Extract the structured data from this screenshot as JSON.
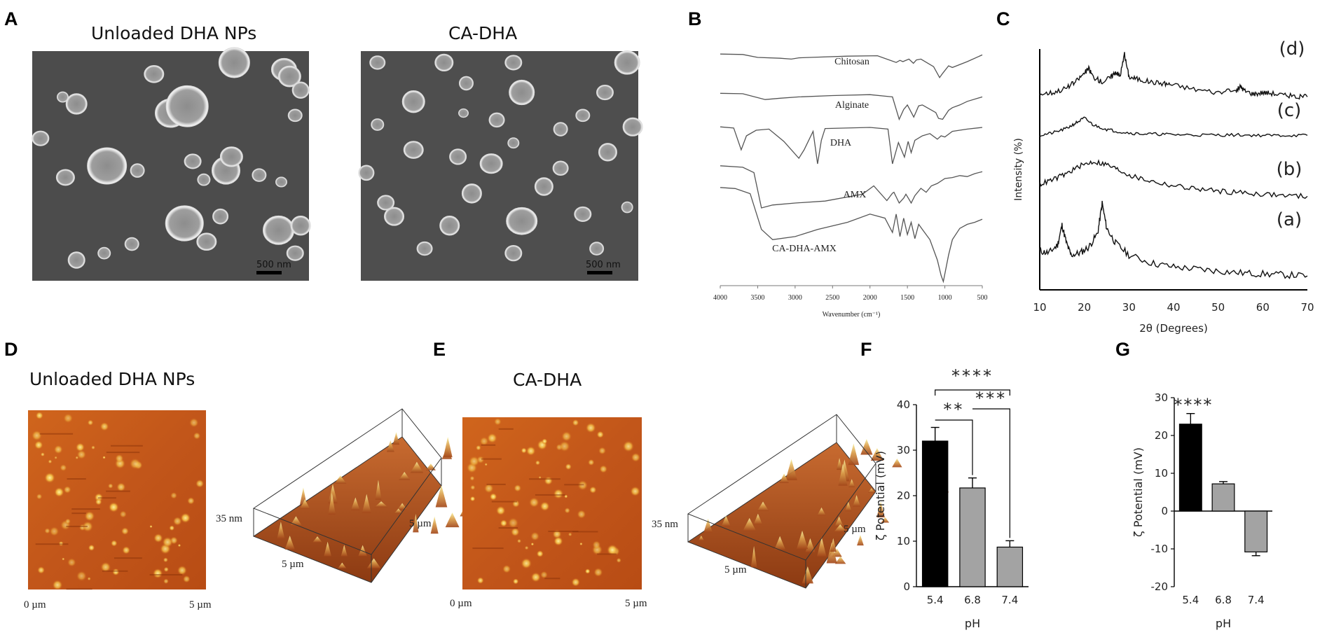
{
  "panel_labels": [
    "A",
    "B",
    "C",
    "D",
    "E",
    "F",
    "G"
  ],
  "panel_a": {
    "left_title": "Unloaded DHA NPs",
    "right_title": "CA-DHA",
    "scale_bar_left": "500 nm",
    "scale_bar_right": "500 nm"
  },
  "panel_d": {
    "title": "Unloaded DHA NPs",
    "x_start": "0 µm",
    "x_end": "5 µm",
    "height_label": "35 nm",
    "side_label_right": "5 µm",
    "side_label_bottom": "5 µm"
  },
  "panel_e": {
    "title": "CA-DHA",
    "x_start": "0 µm",
    "x_end": "5 µm",
    "height_label": "35 nm",
    "side_label_right": "5 µm",
    "side_label_bottom": "5 µm"
  },
  "colors": {
    "black_bar": "#000000",
    "grey_bar": "#a3a3a3",
    "sem_background": "#4c4c4c",
    "afm_base": "#c65a16"
  },
  "chart_data": [
    {
      "id": "B",
      "type": "line",
      "xlabel": "Wavenumber (cm⁻¹)",
      "x_ticks": [
        4000,
        3500,
        3000,
        2500,
        2000,
        1500,
        1000,
        500
      ],
      "xlim": [
        4000,
        500
      ],
      "series": [
        {
          "name": "Chitosan",
          "x": [
            4000,
            3700,
            3500,
            3200,
            3050,
            2950,
            2800,
            2300,
            1900,
            1650,
            1600,
            1560,
            1480,
            1420,
            1380,
            1320,
            1150,
            1070,
            1030,
            950,
            900,
            700,
            500
          ],
          "y": [
            0.98,
            0.97,
            0.9,
            0.88,
            0.86,
            0.89,
            0.9,
            0.93,
            0.94,
            0.78,
            0.83,
            0.8,
            0.86,
            0.76,
            0.84,
            0.86,
            0.68,
            0.42,
            0.52,
            0.7,
            0.66,
            0.8,
            0.96
          ]
        },
        {
          "name": "Alginate",
          "x": [
            4000,
            3700,
            3400,
            3200,
            2950,
            2500,
            2000,
            1700,
            1610,
            1550,
            1500,
            1415,
            1350,
            1300,
            1120,
            1085,
            1030,
            950,
            900,
            800,
            700,
            500
          ],
          "y": [
            0.98,
            0.97,
            0.84,
            0.87,
            0.9,
            0.93,
            0.95,
            0.9,
            0.4,
            0.62,
            0.72,
            0.45,
            0.7,
            0.72,
            0.55,
            0.42,
            0.4,
            0.6,
            0.66,
            0.72,
            0.8,
            0.9
          ]
        },
        {
          "name": "DHA",
          "x": [
            4000,
            3820,
            3720,
            3650,
            3520,
            3350,
            3150,
            2950,
            2880,
            2760,
            2700,
            2650,
            2600,
            2000,
            1760,
            1700,
            1620,
            1540,
            1490,
            1450,
            1400,
            1300,
            1200,
            1100,
            1050,
            1000,
            900,
            800,
            700,
            500
          ],
          "y": [
            0.96,
            0.94,
            0.55,
            0.8,
            0.9,
            0.92,
            0.7,
            0.4,
            0.55,
            0.88,
            0.3,
            0.72,
            0.93,
            0.95,
            0.92,
            0.3,
            0.68,
            0.42,
            0.7,
            0.5,
            0.72,
            0.8,
            0.84,
            0.74,
            0.8,
            0.78,
            0.88,
            0.9,
            0.92,
            0.95
          ]
        },
        {
          "name": "AMX",
          "x": [
            4000,
            3700,
            3550,
            3450,
            3300,
            3000,
            2600,
            2100,
            1950,
            1775,
            1700,
            1680,
            1610,
            1550,
            1520,
            1480,
            1450,
            1400,
            1320,
            1250,
            1180,
            1100,
            1000,
            900,
            800,
            700,
            600,
            500
          ],
          "y": [
            0.96,
            0.93,
            0.82,
            0.1,
            0.16,
            0.2,
            0.24,
            0.38,
            0.55,
            0.25,
            0.4,
            0.42,
            0.2,
            0.3,
            0.38,
            0.28,
            0.2,
            0.35,
            0.5,
            0.42,
            0.55,
            0.6,
            0.7,
            0.72,
            0.76,
            0.74,
            0.8,
            0.84
          ]
        },
        {
          "name": "CA-DHA-AMX",
          "x": [
            4000,
            3800,
            3600,
            3450,
            3300,
            3000,
            2700,
            2300,
            2000,
            1800,
            1700,
            1650,
            1600,
            1550,
            1500,
            1450,
            1400,
            1350,
            1300,
            1200,
            1100,
            1050,
            1020,
            950,
            900,
            800,
            700,
            600,
            500
          ],
          "y": [
            0.96,
            0.95,
            0.9,
            0.55,
            0.45,
            0.48,
            0.55,
            0.62,
            0.7,
            0.66,
            0.52,
            0.7,
            0.48,
            0.66,
            0.5,
            0.62,
            0.46,
            0.6,
            0.55,
            0.45,
            0.25,
            0.1,
            0.04,
            0.3,
            0.45,
            0.56,
            0.6,
            0.62,
            0.65
          ]
        }
      ]
    },
    {
      "id": "C",
      "type": "line",
      "xlabel": "2θ (Degrees)",
      "ylabel": "Intensity (%)",
      "xlim": [
        10,
        70
      ],
      "x_ticks": [
        10,
        20,
        30,
        40,
        50,
        60,
        70
      ],
      "series": [
        {
          "name": "(a)",
          "x": [
            10,
            12,
            14,
            15,
            16,
            17,
            19,
            21,
            23,
            24,
            25,
            27,
            30,
            35,
            40,
            45,
            50,
            55,
            60,
            65,
            70
          ],
          "y": [
            0.32,
            0.3,
            0.38,
            0.58,
            0.4,
            0.28,
            0.3,
            0.36,
            0.5,
            0.8,
            0.55,
            0.4,
            0.28,
            0.2,
            0.16,
            0.14,
            0.12,
            0.1,
            0.09,
            0.08,
            0.07
          ]
        },
        {
          "name": "(b)",
          "x": [
            10,
            13,
            16,
            19,
            22,
            25,
            28,
            31,
            35,
            40,
            45,
            50,
            55,
            60,
            65,
            70
          ],
          "y": [
            0.36,
            0.42,
            0.5,
            0.6,
            0.66,
            0.62,
            0.54,
            0.46,
            0.4,
            0.34,
            0.3,
            0.27,
            0.25,
            0.23,
            0.21,
            0.2
          ]
        },
        {
          "name": "(c)",
          "x": [
            10,
            13,
            16,
            18,
            20,
            22,
            25,
            28,
            32,
            36,
            40,
            45,
            50,
            55,
            60,
            65,
            70
          ],
          "y": [
            0.3,
            0.36,
            0.46,
            0.58,
            0.7,
            0.54,
            0.44,
            0.38,
            0.34,
            0.33,
            0.32,
            0.31,
            0.31,
            0.31,
            0.3,
            0.3,
            0.3
          ]
        },
        {
          "name": "(d)",
          "x": [
            10,
            13,
            16,
            18,
            20,
            21,
            22,
            24,
            26,
            27,
            28,
            29,
            30,
            32,
            35,
            38,
            40,
            45,
            50,
            54,
            55,
            56,
            58,
            60,
            62,
            65,
            68,
            70
          ],
          "y": [
            0.32,
            0.34,
            0.4,
            0.48,
            0.6,
            0.66,
            0.55,
            0.48,
            0.55,
            0.62,
            0.56,
            0.85,
            0.55,
            0.52,
            0.48,
            0.46,
            0.44,
            0.38,
            0.34,
            0.36,
            0.42,
            0.36,
            0.32,
            0.34,
            0.33,
            0.3,
            0.28,
            0.28
          ]
        }
      ]
    },
    {
      "id": "F",
      "type": "bar",
      "xlabel": "pH",
      "ylabel": "ζ Potential (mV)",
      "categories": [
        "5.4",
        "6.8",
        "7.4"
      ],
      "values": [
        32,
        21.7,
        8.7
      ],
      "errors": [
        3.0,
        2.2,
        1.4
      ],
      "ylim": [
        0,
        40
      ],
      "y_ticks": [
        0,
        10,
        20,
        30,
        40
      ],
      "significance": [
        {
          "from": 0,
          "to": 2,
          "label": "****"
        },
        {
          "from": 0,
          "to": 1,
          "label": "**"
        },
        {
          "from": 1,
          "to": 2,
          "label": "***"
        }
      ]
    },
    {
      "id": "G",
      "type": "bar",
      "xlabel": "pH",
      "ylabel": "ζ Potential (mV)",
      "categories": [
        "5.4",
        "6.8",
        "7.4"
      ],
      "values": [
        23,
        7.2,
        -10.8
      ],
      "errors": [
        2.8,
        0.6,
        1.0
      ],
      "ylim": [
        -20,
        30
      ],
      "y_ticks": [
        -20,
        -10,
        0,
        10,
        20,
        30
      ],
      "annotation": "****"
    }
  ]
}
